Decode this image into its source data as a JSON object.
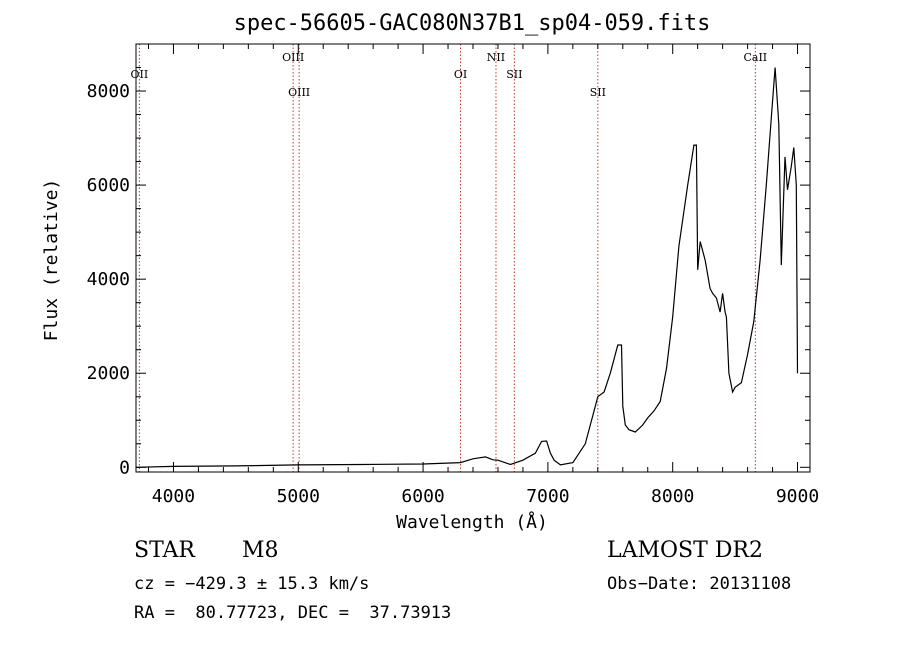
{
  "chart_data": {
    "type": "line",
    "title": "spec-56605-GAC080N37B1_sp04-059.fits",
    "xlabel": "Wavelength (Å)",
    "ylabel": "Flux (relative)",
    "xlim": [
      3700,
      9100
    ],
    "ylim": [
      -100,
      9000
    ],
    "x_ticks": [
      "4000",
      "5000",
      "6000",
      "7000",
      "8000",
      "9000"
    ],
    "x_tick_values": [
      4000,
      5000,
      6000,
      7000,
      8000,
      9000
    ],
    "y_ticks": [
      "0",
      "2000",
      "4000",
      "6000",
      "8000"
    ],
    "y_tick_values": [
      0,
      2000,
      4000,
      6000,
      8000
    ],
    "series": [
      {
        "points": [
          [
            3700,
            0
          ],
          [
            4000,
            20
          ],
          [
            4500,
            30
          ],
          [
            5000,
            50
          ],
          [
            5500,
            60
          ],
          [
            6000,
            70
          ],
          [
            6300,
            100
          ],
          [
            6400,
            180
          ],
          [
            6500,
            220
          ],
          [
            6560,
            160
          ],
          [
            6600,
            150
          ],
          [
            6700,
            60
          ],
          [
            6800,
            150
          ],
          [
            6900,
            300
          ],
          [
            6950,
            550
          ],
          [
            6990,
            560
          ],
          [
            7020,
            300
          ],
          [
            7050,
            150
          ],
          [
            7100,
            50
          ],
          [
            7200,
            100
          ],
          [
            7300,
            500
          ],
          [
            7360,
            1100
          ],
          [
            7400,
            1500
          ],
          [
            7450,
            1600
          ],
          [
            7500,
            2000
          ],
          [
            7560,
            2600
          ],
          [
            7590,
            2600
          ],
          [
            7600,
            1300
          ],
          [
            7620,
            900
          ],
          [
            7650,
            800
          ],
          [
            7700,
            750
          ],
          [
            7760,
            900
          ],
          [
            7800,
            1050
          ],
          [
            7850,
            1200
          ],
          [
            7900,
            1400
          ],
          [
            7950,
            2100
          ],
          [
            8000,
            3200
          ],
          [
            8050,
            4700
          ],
          [
            8120,
            6000
          ],
          [
            8170,
            6850
          ],
          [
            8190,
            6850
          ],
          [
            8200,
            4200
          ],
          [
            8220,
            4800
          ],
          [
            8260,
            4400
          ],
          [
            8300,
            3800
          ],
          [
            8320,
            3700
          ],
          [
            8350,
            3600
          ],
          [
            8380,
            3300
          ],
          [
            8400,
            3700
          ],
          [
            8420,
            3300
          ],
          [
            8430,
            3200
          ],
          [
            8450,
            2000
          ],
          [
            8480,
            1600
          ],
          [
            8500,
            1700
          ],
          [
            8550,
            1800
          ],
          [
            8600,
            2400
          ],
          [
            8650,
            3100
          ],
          [
            8700,
            4400
          ],
          [
            8750,
            6000
          ],
          [
            8800,
            7800
          ],
          [
            8820,
            8500
          ],
          [
            8850,
            7300
          ],
          [
            8870,
            4300
          ],
          [
            8900,
            6600
          ],
          [
            8920,
            5900
          ],
          [
            8950,
            6400
          ],
          [
            8970,
            6800
          ],
          [
            8990,
            6000
          ],
          [
            9000,
            2000
          ]
        ]
      }
    ],
    "line_marks": [
      {
        "label": "OII",
        "x": 3727,
        "row": 2
      },
      {
        "label": "OIII",
        "x": 4959,
        "row": 1
      },
      {
        "label": "OIII",
        "x": 5007,
        "row": 3
      },
      {
        "label": "OI",
        "x": 6300,
        "row": 2
      },
      {
        "label": "NII",
        "x": 6584,
        "row": 1
      },
      {
        "label": "SII",
        "x": 6731,
        "row": 2
      },
      {
        "label": "SII",
        "x": 7400,
        "row": 3
      },
      {
        "label": "CaII",
        "x": 8662,
        "row": 1
      }
    ],
    "grid": false
  },
  "info": {
    "object_type": "STAR",
    "subclass": "M8",
    "survey": "LAMOST DR2",
    "cz": "cz = −429.3 ± 15.3 km/s",
    "obs_date": "Obs−Date: 20131108",
    "coords": "RA =  80.77723, DEC =  37.73913"
  },
  "colors": {
    "line_mark": "#c0392b",
    "spectrum": "#000000",
    "axis": "#000000"
  }
}
